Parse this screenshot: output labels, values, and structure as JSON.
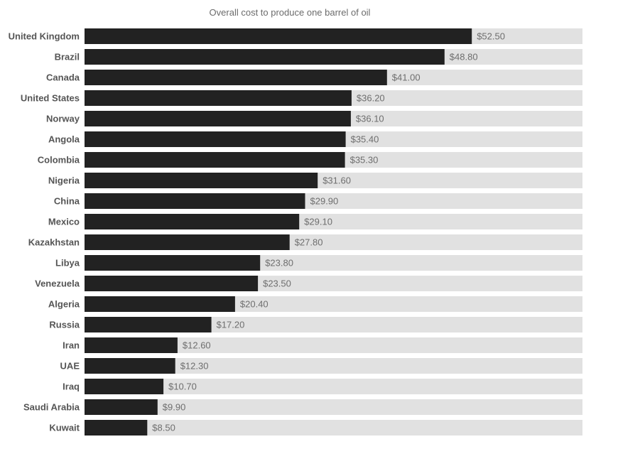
{
  "chart_data": {
    "type": "bar",
    "orientation": "horizontal",
    "title": "Overall cost to produce one barrel of oil",
    "xlabel": "",
    "ylabel": "",
    "xlim": [
      0,
      67.5
    ],
    "grid": false,
    "legend": "none",
    "value_prefix": "$",
    "categories": [
      "United Kingdom",
      "Brazil",
      "Canada",
      "United States",
      "Norway",
      "Angola",
      "Colombia",
      "Nigeria",
      "China",
      "Mexico",
      "Kazakhstan",
      "Libya",
      "Venezuela",
      "Algeria",
      "Russia",
      "Iran",
      "UAE",
      "Iraq",
      "Saudi Arabia",
      "Kuwait"
    ],
    "values": [
      52.5,
      48.8,
      41.0,
      36.2,
      36.1,
      35.4,
      35.3,
      31.6,
      29.9,
      29.1,
      27.8,
      23.8,
      23.5,
      20.4,
      17.2,
      12.6,
      12.3,
      10.7,
      9.9,
      8.5
    ],
    "value_labels": [
      "$52.50",
      "$48.80",
      "$41.00",
      "$36.20",
      "$36.10",
      "$35.40",
      "$35.30",
      "$31.60",
      "$29.90",
      "$29.10",
      "$27.80",
      "$23.80",
      "$23.50",
      "$20.40",
      "$17.20",
      "$12.60",
      "$12.30",
      "$10.70",
      "$9.90",
      "$8.50"
    ],
    "colors": {
      "bar": "#222222",
      "track": "#e1e1e1"
    }
  }
}
